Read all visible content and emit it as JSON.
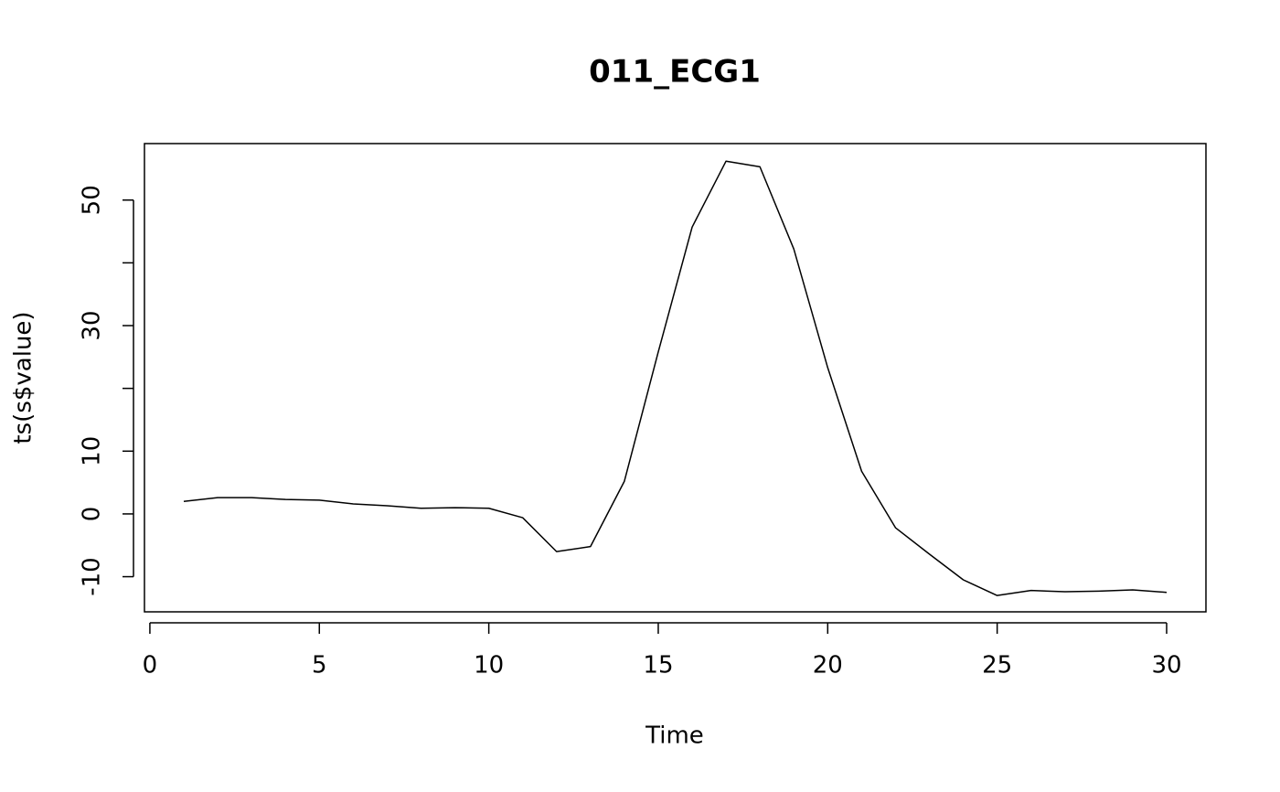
{
  "chart_data": {
    "type": "line",
    "title": "011_ECG1",
    "x_label": "Time",
    "y_label": "ts(s$value)",
    "x": [
      1,
      2,
      3,
      4,
      5,
      6,
      7,
      8,
      9,
      10,
      11,
      12,
      13,
      14,
      15,
      16,
      17,
      18,
      19,
      20,
      21,
      22,
      23,
      24,
      25,
      26,
      27,
      28,
      29,
      30
    ],
    "values": [
      2.0,
      2.6,
      2.6,
      2.3,
      2.2,
      1.6,
      1.3,
      0.9,
      1.0,
      0.9,
      -0.6,
      -6.0,
      -5.2,
      5.2,
      25.8,
      45.7,
      56.2,
      55.3,
      42.2,
      23.3,
      6.8,
      -2.2,
      -6.4,
      -10.5,
      -13.0,
      -12.2,
      -12.4,
      -12.3,
      -12.1,
      -12.5
    ],
    "color": "#000000",
    "xlim": [
      -0.16,
      31.16
    ],
    "xticks": [
      0,
      5,
      10,
      15,
      20,
      25,
      30
    ],
    "ylim": [
      -15.6,
      59
    ],
    "yticks": [
      -10,
      0,
      10,
      {
        "value": 20,
        "label": null
      },
      30,
      {
        "value": 40,
        "label": null
      },
      50
    ],
    "grid": false
  }
}
